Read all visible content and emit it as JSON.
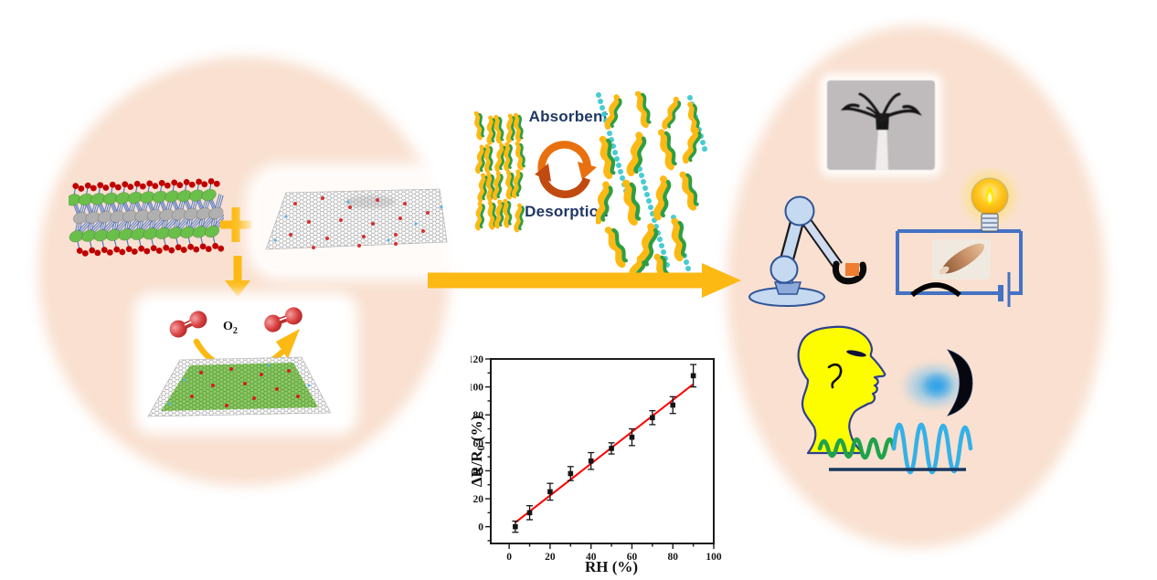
{
  "figure": {
    "absorbent_label": "Absorbent",
    "desorption_label": "Desorption",
    "o2_label": {
      "base": "O",
      "sub": "2"
    }
  },
  "chart_data": {
    "type": "scatter",
    "title": "",
    "xlabel": "RH (%)",
    "ylabel": {
      "pre": "ΔR/R",
      "sub": "0",
      "post": " (%)"
    },
    "x": [
      3,
      10,
      20,
      30,
      40,
      50,
      60,
      70,
      80,
      90
    ],
    "y": [
      0,
      10,
      25,
      38,
      47,
      56,
      64,
      78,
      87,
      108
    ],
    "yerr": [
      4,
      5,
      6,
      5,
      6,
      4,
      6,
      5,
      6,
      8
    ],
    "fit_line": {
      "x1": 3,
      "y1": 3,
      "x2": 90,
      "y2": 102,
      "color": "#ff0000"
    },
    "xlim": [
      -9,
      100
    ],
    "ylim": [
      -12,
      120
    ],
    "x_ticks": [
      0,
      20,
      40,
      60,
      80,
      100
    ],
    "y_ticks": [
      0,
      20,
      40,
      60,
      80,
      100,
      120
    ],
    "x_minor_step": 10,
    "y_minor_step": 10,
    "grid": false,
    "legend_position": "none",
    "marker": "square",
    "marker_color": "#151515"
  },
  "colors": {
    "background": "#ffffff",
    "ellipse_fill": "#f9e0d0",
    "accent_yellow": "#fdb913",
    "cycle_orange": "#e8700f",
    "cycle_dark_orange": "#c14a10",
    "label_navy": "#1f3864",
    "fit_red": "#ff0000",
    "water_cyan": "#3cc9cf",
    "leaf_yellow": "#fdb913",
    "leaf_green": "#2e9e44",
    "lattice_green": "#6abf4b",
    "lattice_gray": "#b0b0b0",
    "lattice_red": "#c00000",
    "bond_blue": "#4472c4",
    "circuit_blue": "#4472c4",
    "robot_blue": "#c5d9f1",
    "head_yellow": "#fdfd00",
    "wave_green": "#1fa34a",
    "wave_blue": "#33b1e8",
    "underline_navy": "#17375e"
  },
  "icons": {
    "plus-icon": "+",
    "down-arrow-icon": "↓",
    "process-arrow-icon": "→",
    "absorb-desorb-cycle-icon": "⟳",
    "o2-molecule-icon": "red dumbbell",
    "water-molecule-icon": "cyan dot",
    "nanosheet-icon": "yellow-green wavy leaf",
    "mxene-lattice-icon": "crystal lattice",
    "graphene-sheet-icon": "hexagonal lattice sheet",
    "actuator-photo": "claw gripper photo",
    "robot-arm-icon": "robot arm with gripper",
    "light-bulb-icon": "glowing bulb",
    "finger-press-icon": "finger pressing sensor",
    "battery-icon": "battery bars",
    "sensor-icon": "black crescent sensor",
    "human-head-icon": "yellow head profile",
    "breath-icon": "blue mist",
    "waveform-icon": "sine waves"
  }
}
